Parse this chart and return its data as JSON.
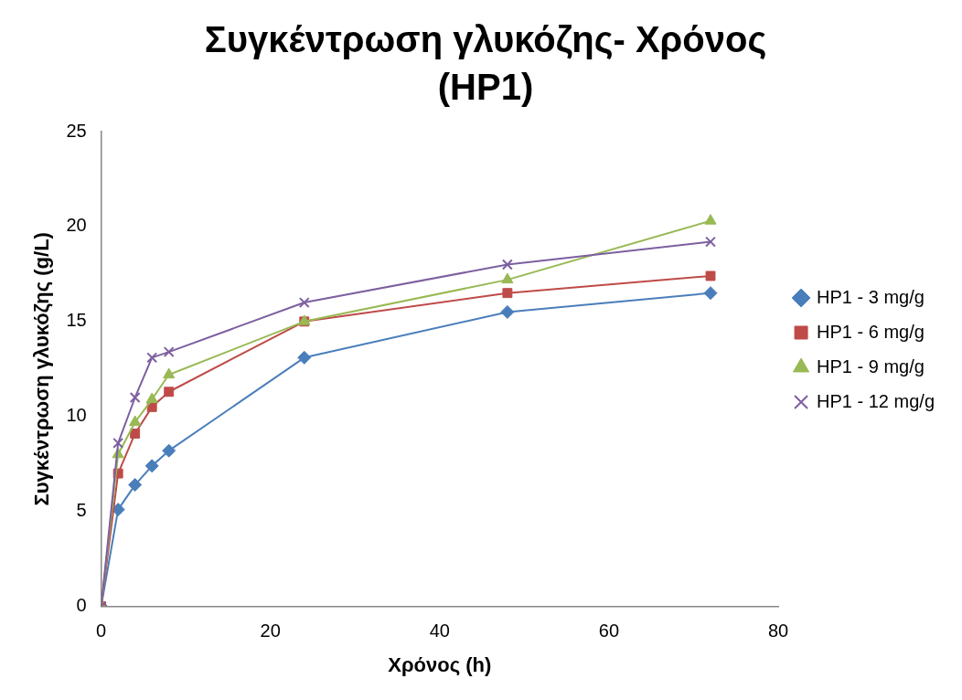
{
  "chart_data": {
    "type": "line",
    "title": "Συγκέντρωση γλυκόζης- Χρόνος (HP1)",
    "xlabel": "Χρόνος (h)",
    "ylabel": "Συγκέντρωση γλυκόζης (g/L)",
    "x": [
      0,
      2,
      4,
      6,
      8,
      24,
      48,
      72
    ],
    "xlim": [
      0,
      80
    ],
    "xticks": [
      0,
      20,
      40,
      60,
      80
    ],
    "ylim": [
      0,
      25
    ],
    "yticks": [
      0,
      5,
      10,
      15,
      20,
      25
    ],
    "grid": false,
    "legend": "right",
    "line_style": "solid",
    "series": [
      {
        "name": "HP1 - 3 mg/g",
        "color": "#4a7ebb",
        "marker": "diamond",
        "values": [
          0,
          5.1,
          6.4,
          7.4,
          8.2,
          13.1,
          15.5,
          16.5
        ]
      },
      {
        "name": "HP1 - 6 mg/g",
        "color": "#be4b48",
        "marker": "square",
        "values": [
          0,
          7.0,
          9.1,
          10.5,
          11.3,
          15.0,
          16.5,
          17.4
        ]
      },
      {
        "name": "HP1 - 9 mg/g",
        "color": "#98b954",
        "marker": "triangle",
        "values": [
          0,
          8.0,
          9.7,
          10.9,
          12.2,
          15.0,
          17.2,
          20.3
        ]
      },
      {
        "name": "HP1 - 12 mg/g",
        "color": "#7d5fa0",
        "marker": "cross",
        "values": [
          0,
          8.6,
          11.0,
          13.1,
          13.4,
          16.0,
          18.0,
          19.2
        ]
      }
    ]
  }
}
